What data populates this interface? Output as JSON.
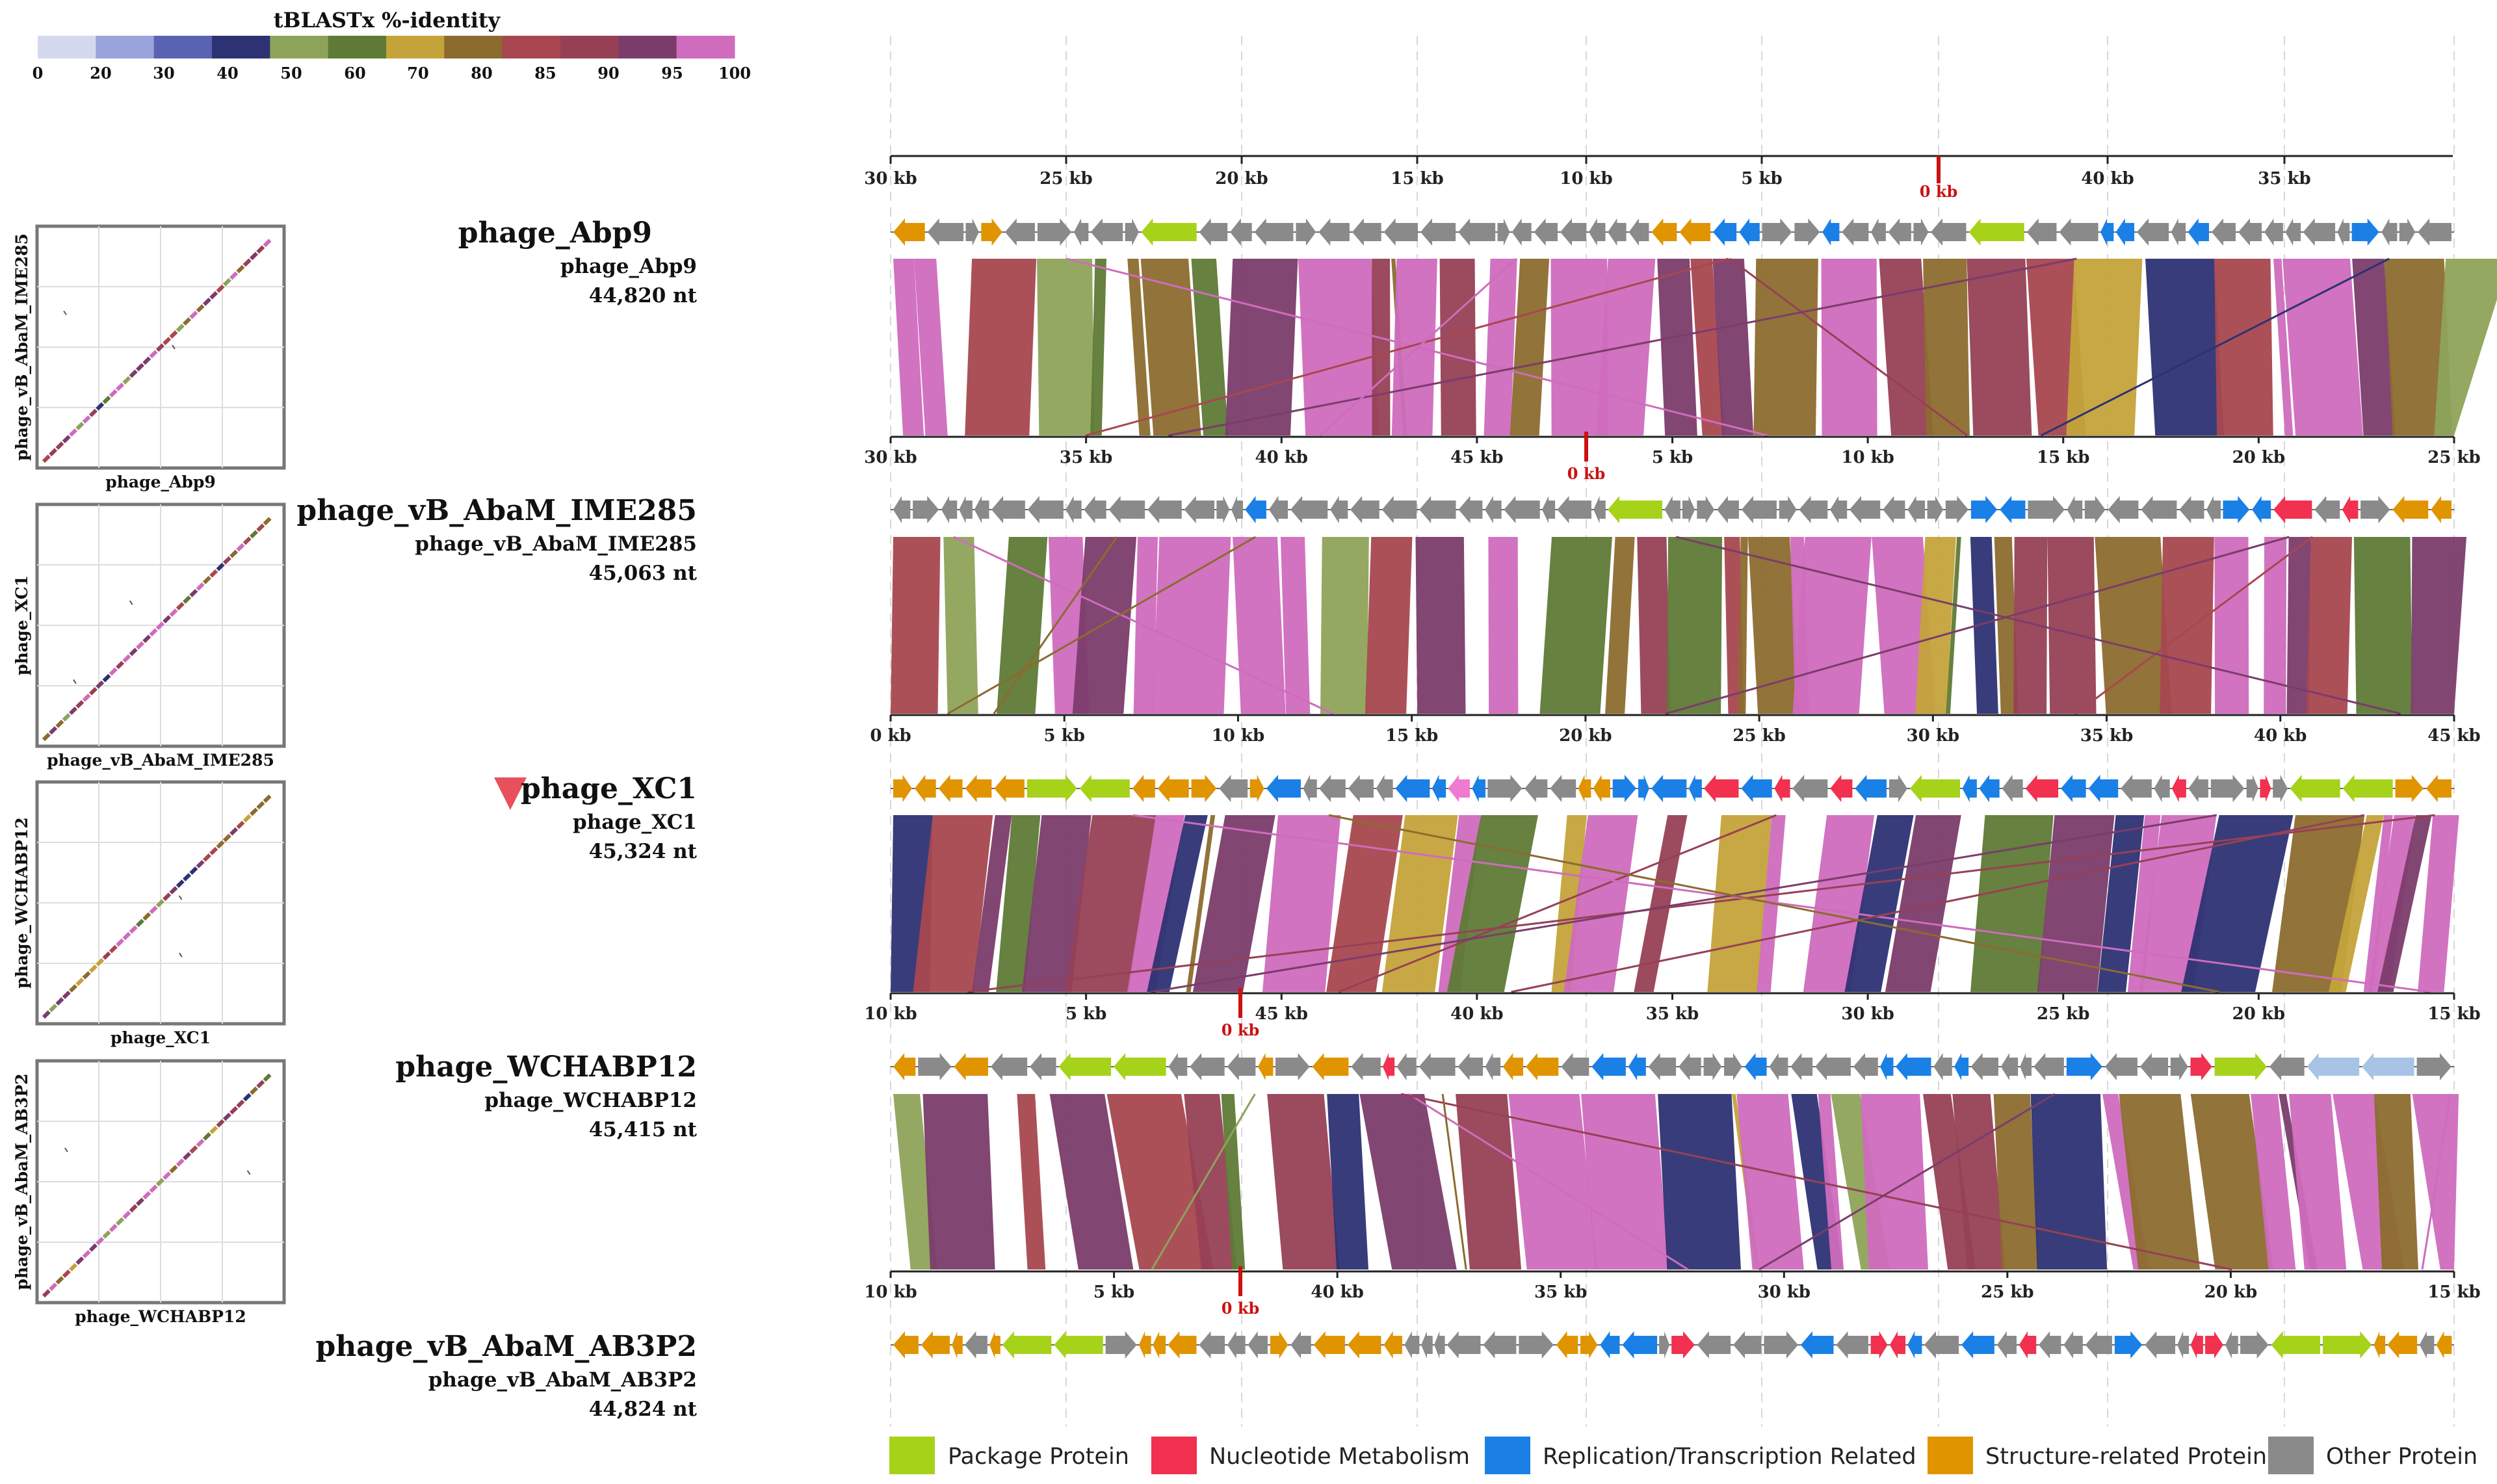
{
  "scale": {
    "title": "tBLASTx %-identity",
    "ticks": [
      "0",
      "20",
      "30",
      "40",
      "50",
      "60",
      "70",
      "80",
      "85",
      "90",
      "95",
      "100"
    ],
    "colors": [
      "#d4d9f0",
      "#9ba3dc",
      "#5a63b3",
      "#2d3273",
      "#8ea35a",
      "#5e7a36",
      "#c4a33a",
      "#8c6b2e",
      "#a8474f",
      "#974055",
      "#7b3c6b",
      "#cf6cbd"
    ]
  },
  "genomes": [
    {
      "id": "abp9",
      "title": "phage_Abp9",
      "sub": "phage_Abp9",
      "length": "44,820 nt",
      "marker": false
    },
    {
      "id": "ime285",
      "title": "phage_vB_AbaM_IME285",
      "sub": "phage_vB_AbaM_IME285",
      "length": "45,063 nt",
      "marker": false
    },
    {
      "id": "xc1",
      "title": "phage_XC1",
      "sub": "phage_XC1",
      "length": "45,324 nt",
      "marker": true
    },
    {
      "id": "wchabp12",
      "title": "phage_WCHABP12",
      "sub": "phage_WCHABP12",
      "length": "45,415 nt",
      "marker": false
    },
    {
      "id": "ab3p2",
      "title": "phage_vB_AbaM_AB3P2",
      "sub": "phage_vB_AbaM_AB3P2",
      "length": "44,824 nt",
      "marker": false
    }
  ],
  "top_axis": [
    "30 kb",
    "25 kb",
    "20 kb",
    "15 kb",
    "10 kb",
    "5 kb",
    "0 kb",
    "40 kb",
    "35 kb"
  ],
  "axes": [
    {
      "labels": [
        "30 kb",
        "35 kb",
        "40 kb",
        "45 kb",
        "5 kb",
        "10 kb",
        "15 kb",
        "20 kb",
        "25 kb"
      ],
      "zero": "0 kb"
    },
    {
      "labels": [
        "0 kb",
        "5 kb",
        "10 kb",
        "15 kb",
        "20 kb",
        "25 kb",
        "30 kb",
        "35 kb",
        "40 kb",
        "45 kb"
      ],
      "zero": ""
    },
    {
      "labels": [
        "10 kb",
        "5 kb",
        "45 kb",
        "40 kb",
        "35 kb",
        "30 kb",
        "25 kb",
        "20 kb",
        "15 kb"
      ],
      "zero": "0 kb"
    },
    {
      "labels": [
        "10 kb",
        "5 kb",
        "40 kb",
        "35 kb",
        "30 kb",
        "25 kb",
        "20 kb",
        "15 kb"
      ],
      "zero": "0 kb"
    }
  ],
  "dotplots": [
    {
      "xlabel": "phage_Abp9",
      "ylabel": "phage_vB_AbaM_IME285"
    },
    {
      "xlabel": "phage_vB_AbaM_IME285",
      "ylabel": "phage_XC1"
    },
    {
      "xlabel": "phage_XC1",
      "ylabel": "phage_WCHABP12"
    },
    {
      "xlabel": "phage_WCHABP12",
      "ylabel": "phage_vB_AbaM_AB3P2"
    }
  ],
  "legend": [
    {
      "label": "Package Protein",
      "color": "#a6d21a",
      "icon": "square-swatch"
    },
    {
      "label": "Nucleotide Metabolism",
      "color": "#f2304f",
      "icon": "square-swatch"
    },
    {
      "label": "Replication/Transcription Related",
      "color": "#1a80e6",
      "icon": "square-swatch"
    },
    {
      "label": "Structure-related Protein",
      "color": "#e09400",
      "icon": "square-swatch"
    },
    {
      "label": "Other Protein",
      "color": "#8a8a8a",
      "icon": "square-swatch"
    }
  ],
  "marker_color": "#e8505b",
  "zero_color": "#cc1111"
}
